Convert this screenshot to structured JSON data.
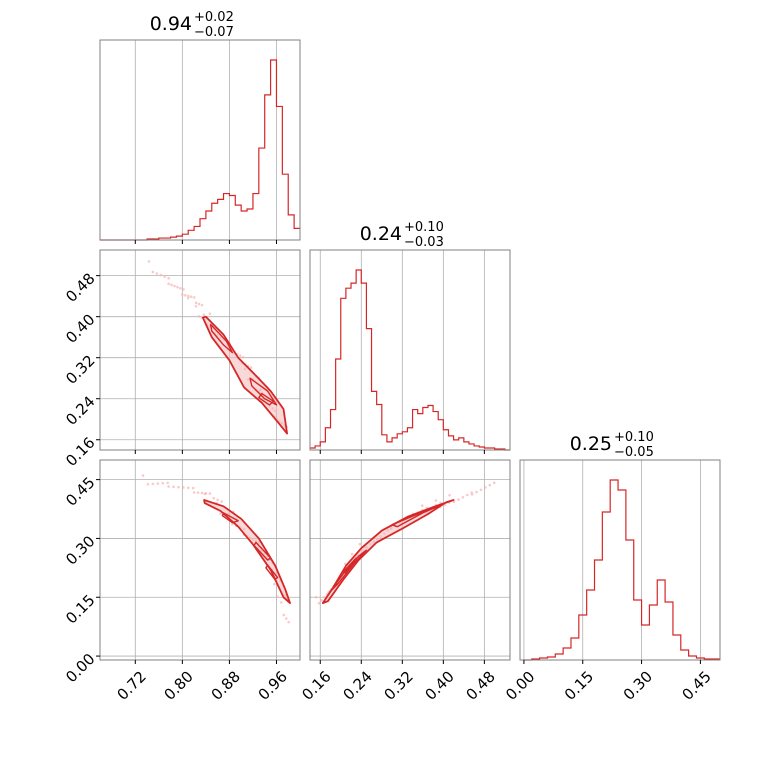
{
  "chart_data": {
    "type": "corner",
    "style": {
      "line_color": "#d62728",
      "fill_color": "#f2b8b8",
      "point_color": "#f5b3b3",
      "grid_color": "#b0b0b0",
      "frame_color": "#808080"
    },
    "parameters": [
      {
        "id": "p1",
        "title_value": "0.94",
        "title_plus": "+0.02",
        "title_minus": "−0.07",
        "range": [
          0.66,
          1.0
        ],
        "ticks": [
          0.72,
          0.8,
          0.88,
          0.96
        ],
        "tick_labels": [
          "0.72",
          "0.80",
          "0.88",
          "0.96"
        ],
        "hist": {
          "x": [
            0.66,
            0.67,
            0.68,
            0.69,
            0.7,
            0.71,
            0.72,
            0.73,
            0.74,
            0.75,
            0.76,
            0.77,
            0.78,
            0.79,
            0.8,
            0.81,
            0.82,
            0.83,
            0.84,
            0.85,
            0.86,
            0.87,
            0.88,
            0.89,
            0.9,
            0.91,
            0.92,
            0.93,
            0.94,
            0.95,
            0.96,
            0.97,
            0.98,
            0.99
          ],
          "counts": [
            0,
            0,
            0,
            0,
            0,
            0,
            0,
            0,
            1,
            1,
            2,
            2,
            3,
            4,
            6,
            10,
            14,
            22,
            30,
            38,
            42,
            48,
            46,
            36,
            30,
            32,
            48,
            95,
            150,
            186,
            138,
            68,
            26,
            12
          ]
        }
      },
      {
        "id": "p2",
        "title_value": "0.24",
        "title_plus": "+0.10",
        "title_minus": "−0.03",
        "range": [
          0.14,
          0.53
        ],
        "ticks": [
          0.16,
          0.24,
          0.32,
          0.4,
          0.48
        ],
        "tick_labels": [
          "0.16",
          "0.24",
          "0.32",
          "0.40",
          "0.48"
        ],
        "hist": {
          "x": [
            0.14,
            0.15,
            0.16,
            0.17,
            0.18,
            0.19,
            0.2,
            0.21,
            0.22,
            0.23,
            0.24,
            0.25,
            0.26,
            0.27,
            0.28,
            0.29,
            0.3,
            0.31,
            0.32,
            0.33,
            0.34,
            0.35,
            0.36,
            0.37,
            0.38,
            0.39,
            0.4,
            0.41,
            0.42,
            0.43,
            0.44,
            0.45,
            0.46,
            0.47,
            0.48,
            0.49,
            0.5,
            0.51,
            0.52
          ],
          "counts": [
            2,
            4,
            8,
            22,
            40,
            90,
            150,
            160,
            165,
            178,
            165,
            120,
            58,
            45,
            15,
            8,
            12,
            16,
            18,
            22,
            40,
            36,
            42,
            44,
            38,
            30,
            20,
            14,
            10,
            12,
            8,
            6,
            4,
            3,
            2,
            2,
            1,
            1,
            0
          ]
        }
      },
      {
        "id": "p3",
        "title_value": "0.25",
        "title_plus": "+0.10",
        "title_minus": "−0.05",
        "range": [
          -0.01,
          0.5
        ],
        "ticks": [
          0.0,
          0.15,
          0.3,
          0.45
        ],
        "tick_labels": [
          "0.00",
          "0.15",
          "0.30",
          "0.45"
        ],
        "hist": {
          "x": [
            0.0,
            0.02,
            0.04,
            0.06,
            0.08,
            0.1,
            0.12,
            0.14,
            0.16,
            0.18,
            0.2,
            0.22,
            0.24,
            0.26,
            0.28,
            0.3,
            0.32,
            0.34,
            0.36,
            0.38,
            0.4,
            0.42,
            0.44,
            0.46,
            0.48
          ],
          "counts": [
            0,
            1,
            2,
            3,
            6,
            12,
            22,
            45,
            70,
            100,
            148,
            180,
            170,
            120,
            60,
            35,
            55,
            80,
            58,
            25,
            10,
            4,
            2,
            1,
            1
          ]
        }
      }
    ],
    "pairs": [
      {
        "x_param": "p1",
        "y_param": "p2",
        "y_range": [
          0.14,
          0.53
        ],
        "y_ticks": [
          0.16,
          0.24,
          0.32,
          0.4,
          0.48
        ],
        "y_tick_labels": [
          "0.16",
          "0.24",
          "0.32",
          "0.40",
          "0.48"
        ],
        "ridge": [
          [
            0.75,
            0.5
          ],
          [
            0.78,
            0.47
          ],
          [
            0.8,
            0.445
          ],
          [
            0.82,
            0.425
          ],
          [
            0.84,
            0.4
          ],
          [
            0.86,
            0.375
          ],
          [
            0.88,
            0.34
          ],
          [
            0.9,
            0.31
          ],
          [
            0.92,
            0.28
          ],
          [
            0.94,
            0.25
          ],
          [
            0.96,
            0.21
          ],
          [
            0.975,
            0.175
          ]
        ],
        "contours": [
          {
            "level": "outer",
            "points": [
              [
                0.84,
                0.4
              ],
              [
                0.87,
                0.365
              ],
              [
                0.895,
                0.32
              ],
              [
                0.925,
                0.285
              ],
              [
                0.95,
                0.255
              ],
              [
                0.972,
                0.22
              ],
              [
                0.978,
                0.172
              ],
              [
                0.962,
                0.195
              ],
              [
                0.935,
                0.232
              ],
              [
                0.905,
                0.262
              ],
              [
                0.88,
                0.315
              ],
              [
                0.85,
                0.36
              ],
              [
                0.835,
                0.398
              ]
            ]
          },
          {
            "level": "inner-1",
            "points": [
              [
                0.848,
                0.385
              ],
              [
                0.875,
                0.352
              ],
              [
                0.885,
                0.33
              ],
              [
                0.87,
                0.345
              ],
              [
                0.85,
                0.372
              ]
            ]
          },
          {
            "level": "inner-2",
            "points": [
              [
                0.915,
                0.28
              ],
              [
                0.945,
                0.255
              ],
              [
                0.96,
                0.228
              ],
              [
                0.94,
                0.24
              ],
              [
                0.918,
                0.265
              ]
            ]
          },
          {
            "level": "inner-3",
            "points": [
              [
                0.935,
                0.25
              ],
              [
                0.955,
                0.235
              ],
              [
                0.948,
                0.228
              ],
              [
                0.93,
                0.242
              ]
            ]
          }
        ]
      },
      {
        "x_param": "p1",
        "y_param": "p3",
        "y_range": [
          -0.01,
          0.5
        ],
        "y_ticks": [
          0.0,
          0.15,
          0.3,
          0.45
        ],
        "y_tick_labels": [
          "0.00",
          "0.15",
          "0.30",
          "0.45"
        ],
        "ridge": [
          [
            0.74,
            0.45
          ],
          [
            0.78,
            0.44
          ],
          [
            0.82,
            0.42
          ],
          [
            0.85,
            0.4
          ],
          [
            0.88,
            0.36
          ],
          [
            0.91,
            0.32
          ],
          [
            0.93,
            0.28
          ],
          [
            0.95,
            0.22
          ],
          [
            0.97,
            0.15
          ],
          [
            0.985,
            0.08
          ]
        ],
        "contours": [
          {
            "level": "outer",
            "points": [
              [
                0.837,
                0.398
              ],
              [
                0.87,
                0.382
              ],
              [
                0.9,
                0.35
              ],
              [
                0.93,
                0.3
              ],
              [
                0.958,
                0.23
              ],
              [
                0.975,
                0.17
              ],
              [
                0.983,
                0.135
              ],
              [
                0.972,
                0.15
              ],
              [
                0.95,
                0.22
              ],
              [
                0.92,
                0.285
              ],
              [
                0.895,
                0.33
              ],
              [
                0.865,
                0.37
              ],
              [
                0.838,
                0.39
              ]
            ]
          },
          {
            "level": "inner-1",
            "points": [
              [
                0.87,
                0.365
              ],
              [
                0.895,
                0.345
              ],
              [
                0.885,
                0.34
              ],
              [
                0.868,
                0.358
              ]
            ]
          },
          {
            "level": "inner-2",
            "points": [
              [
                0.925,
                0.29
              ],
              [
                0.95,
                0.25
              ],
              [
                0.945,
                0.245
              ],
              [
                0.922,
                0.282
              ]
            ]
          },
          {
            "level": "inner-3",
            "points": [
              [
                0.945,
                0.232
              ],
              [
                0.962,
                0.2
              ],
              [
                0.957,
                0.196
              ],
              [
                0.942,
                0.225
              ]
            ]
          }
        ]
      },
      {
        "x_param": "p2",
        "y_param": "p3",
        "ridge": [
          [
            0.16,
            0.14
          ],
          [
            0.18,
            0.17
          ],
          [
            0.2,
            0.2
          ],
          [
            0.22,
            0.23
          ],
          [
            0.24,
            0.27
          ],
          [
            0.27,
            0.3
          ],
          [
            0.3,
            0.33
          ],
          [
            0.34,
            0.36
          ],
          [
            0.38,
            0.38
          ],
          [
            0.42,
            0.4
          ],
          [
            0.46,
            0.42
          ],
          [
            0.5,
            0.44
          ]
        ],
        "contours": [
          {
            "level": "outer",
            "points": [
              [
                0.165,
                0.135
              ],
              [
                0.185,
                0.175
              ],
              [
                0.21,
                0.23
              ],
              [
                0.24,
                0.275
              ],
              [
                0.28,
                0.32
              ],
              [
                0.33,
                0.355
              ],
              [
                0.38,
                0.38
              ],
              [
                0.42,
                0.398
              ],
              [
                0.405,
                0.392
              ],
              [
                0.37,
                0.362
              ],
              [
                0.32,
                0.325
              ],
              [
                0.27,
                0.29
              ],
              [
                0.235,
                0.245
              ],
              [
                0.205,
                0.195
              ],
              [
                0.175,
                0.14
              ]
            ]
          },
          {
            "level": "inner-1",
            "points": [
              [
                0.18,
                0.165
              ],
              [
                0.205,
                0.21
              ],
              [
                0.235,
                0.255
              ],
              [
                0.25,
                0.27
              ],
              [
                0.225,
                0.235
              ],
              [
                0.195,
                0.185
              ]
            ]
          },
          {
            "level": "inner-2",
            "points": [
              [
                0.3,
                0.335
              ],
              [
                0.35,
                0.362
              ],
              [
                0.39,
                0.382
              ],
              [
                0.36,
                0.365
              ],
              [
                0.31,
                0.33
              ]
            ]
          },
          {
            "level": "inner-3",
            "points": [
              [
                0.205,
                0.215
              ],
              [
                0.23,
                0.25
              ],
              [
                0.225,
                0.24
              ],
              [
                0.208,
                0.212
              ]
            ]
          }
        ]
      }
    ]
  }
}
